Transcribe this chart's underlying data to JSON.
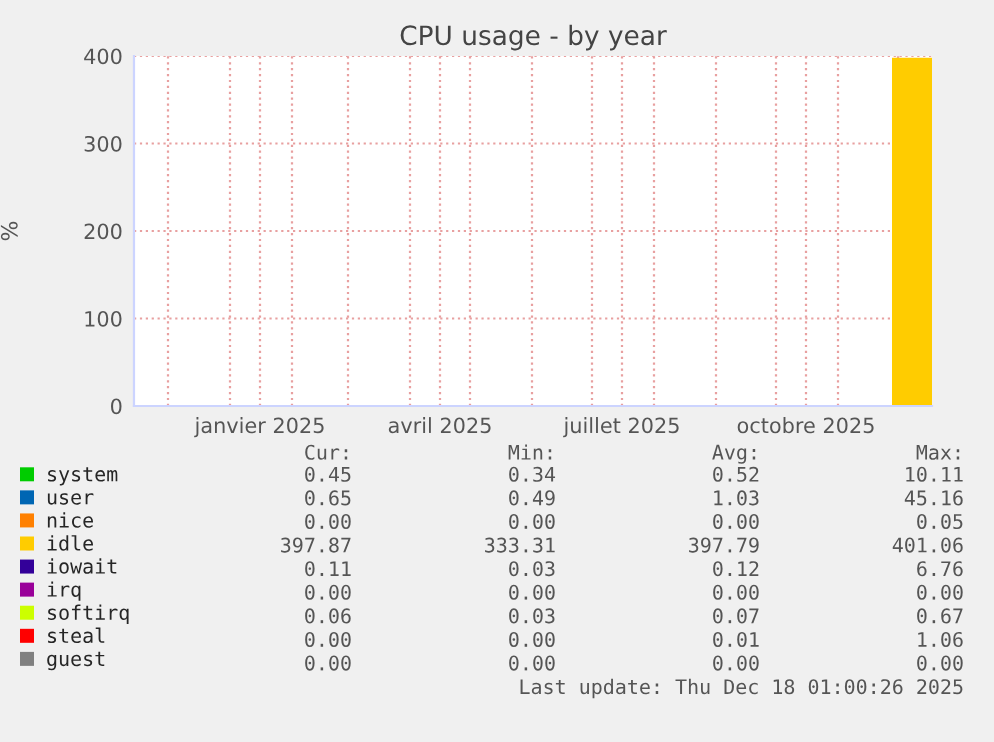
{
  "chart_data": {
    "type": "area",
    "title": "CPU usage - by year",
    "ylabel": "%",
    "x": [
      "2025-11-28",
      "2025-12-18"
    ],
    "series": [
      {
        "name": "system",
        "color": "#00cc00",
        "values": [
          null,
          null
        ]
      },
      {
        "name": "user",
        "color": "#0066b3",
        "values": [
          null,
          null
        ]
      },
      {
        "name": "nice",
        "color": "#ff8000",
        "values": [
          null,
          null
        ]
      },
      {
        "name": "idle",
        "color": "#ffcc00",
        "values": [
          398,
          398
        ]
      },
      {
        "name": "iowait",
        "color": "#330099",
        "values": [
          null,
          null
        ]
      },
      {
        "name": "irq",
        "color": "#990099",
        "values": [
          null,
          null
        ]
      },
      {
        "name": "softirq",
        "color": "#ccff00",
        "values": [
          null,
          null
        ]
      },
      {
        "name": "steal",
        "color": "#ff0000",
        "values": [
          null,
          null
        ]
      },
      {
        "name": "guest",
        "color": "#808080",
        "values": [
          null,
          null
        ]
      }
    ],
    "xlim": [
      "2024-11-14",
      "2025-12-18"
    ],
    "xticks": [
      {
        "value": "2024-12-01",
        "label": null
      },
      {
        "value": "2025-01-01",
        "label": null
      },
      {
        "value": "2025-01-16",
        "label": "janvier 2025"
      },
      {
        "value": "2025-02-01",
        "label": null
      },
      {
        "value": "2025-03-01",
        "label": null
      },
      {
        "value": "2025-04-01",
        "label": null
      },
      {
        "value": "2025-04-16",
        "label": "avril 2025"
      },
      {
        "value": "2025-05-01",
        "label": null
      },
      {
        "value": "2025-06-01",
        "label": null
      },
      {
        "value": "2025-07-01",
        "label": null
      },
      {
        "value": "2025-07-16",
        "label": "juillet 2025"
      },
      {
        "value": "2025-08-01",
        "label": null
      },
      {
        "value": "2025-09-01",
        "label": null
      },
      {
        "value": "2025-10-01",
        "label": null
      },
      {
        "value": "2025-10-16",
        "label": "octobre 2025"
      },
      {
        "value": "2025-11-01",
        "label": null
      },
      {
        "value": "2025-12-01",
        "label": null
      }
    ],
    "ylim": [
      0,
      400
    ],
    "yticks": [
      0,
      100,
      200,
      300,
      400
    ],
    "grid": true,
    "legend": "bottom left",
    "annotations": [
      "Cur:",
      "Min:",
      "Avg:",
      "Max:",
      "0.45",
      "0.34",
      "0.52",
      "10.11",
      "0.65",
      "0.49",
      "1.03",
      "45.16",
      "0.00",
      "0.00",
      "0.00",
      "0.05",
      "397.87",
      "333.31",
      "397.79",
      "401.06",
      "0.11",
      "0.03",
      "0.12",
      "6.76",
      "0.00",
      "0.00",
      "0.00",
      "0.00",
      "0.06",
      "0.03",
      "0.07",
      "0.67",
      "0.00",
      "0.00",
      "0.01",
      "1.06",
      "0.00",
      "0.00",
      "0.00",
      "0.00",
      "Last update: Thu Dec 18 01:00:26 2025"
    ]
  }
}
